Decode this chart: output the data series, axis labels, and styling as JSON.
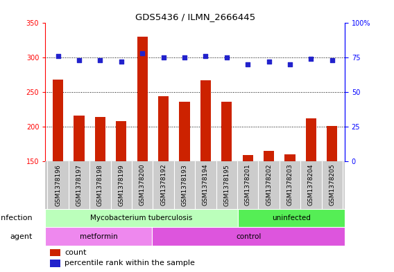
{
  "title": "GDS5436 / ILMN_2666445",
  "samples": [
    "GSM1378196",
    "GSM1378197",
    "GSM1378198",
    "GSM1378199",
    "GSM1378200",
    "GSM1378192",
    "GSM1378193",
    "GSM1378194",
    "GSM1378195",
    "GSM1378201",
    "GSM1378202",
    "GSM1378203",
    "GSM1378204",
    "GSM1378205"
  ],
  "counts": [
    268,
    216,
    214,
    208,
    330,
    244,
    236,
    267,
    236,
    159,
    165,
    160,
    212,
    201
  ],
  "percentiles": [
    76,
    73,
    73,
    72,
    78,
    75,
    75,
    76,
    75,
    70,
    72,
    70,
    74,
    73
  ],
  "ylim_left": [
    150,
    350
  ],
  "ylim_right": [
    0,
    100
  ],
  "yticks_left": [
    150,
    200,
    250,
    300,
    350
  ],
  "yticks_right": [
    0,
    25,
    50,
    75,
    100
  ],
  "bar_color": "#cc2200",
  "dot_color": "#2222cc",
  "infection_groups": [
    {
      "label": "Mycobacterium tuberculosis",
      "start": 0,
      "end": 9,
      "color": "#bbffbb"
    },
    {
      "label": "uninfected",
      "start": 9,
      "end": 14,
      "color": "#55ee55"
    }
  ],
  "agent_groups": [
    {
      "label": "metformin",
      "start": 0,
      "end": 5,
      "color": "#ee88ee"
    },
    {
      "label": "control",
      "start": 5,
      "end": 14,
      "color": "#dd55dd"
    }
  ],
  "infection_label": "infection",
  "agent_label": "agent",
  "legend_count_label": "count",
  "legend_percentile_label": "percentile rank within the sample",
  "xticklabel_bg": "#cccccc",
  "plot_bg": "#ffffff",
  "chart_bg": "#ffffff"
}
